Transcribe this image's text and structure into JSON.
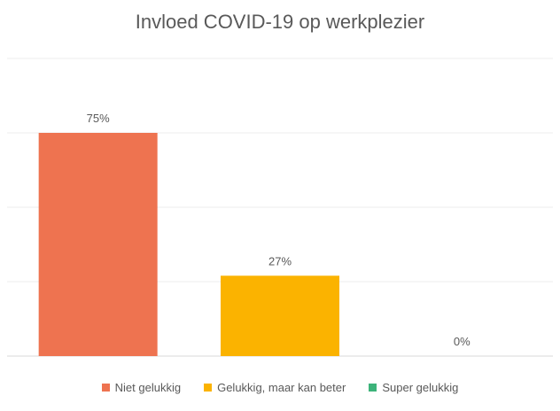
{
  "chart_data": {
    "type": "bar",
    "title": "Invloed COVID-19 op werkplezier",
    "xlabel": "",
    "ylabel": "",
    "ylim": [
      0,
      100
    ],
    "grid": true,
    "legend_position": "bottom",
    "categories": [
      "Niet gelukkig",
      "Gelukkig, maar kan beter",
      "Super gelukkig"
    ],
    "values": [
      75,
      27,
      0
    ],
    "data_labels": [
      "75%",
      "27%",
      "0%"
    ],
    "colors": [
      "#EE7350",
      "#FBB300",
      "#3DB37A"
    ]
  }
}
